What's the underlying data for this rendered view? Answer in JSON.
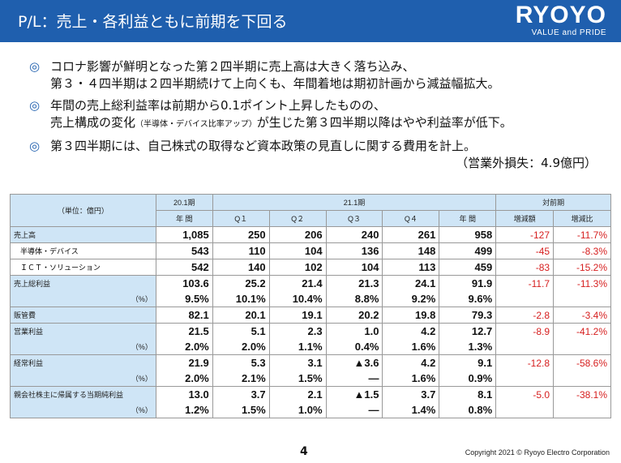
{
  "header": {
    "title": "P/L：売上・各利益ともに前期を下回る",
    "brand": "RYOYO",
    "tagline": "VALUE and PRIDE"
  },
  "bullets": [
    {
      "mark": "◎",
      "line1": "コロナ影響が鮮明となった第２四半期に売上高は大きく落ち込み、",
      "line2": "第３・４四半期は２四半期続けて上向くも、年間着地は期初計画から減益幅拡大。"
    },
    {
      "mark": "◎",
      "line1": "年間の売上総利益率は前期から0.1ポイント上昇したものの、",
      "line2a": "売上構成の変化",
      "line2_small": "（半導体・デバイス比率アップ）",
      "line2b": "が生じた第３四半期以降はやや利益率が低下。"
    },
    {
      "mark": "◎",
      "line1": "第３四半期には、自己株式の取得など資本政策の見直しに関する費用を計上。",
      "note": "（営業外損失：4.9億円）"
    }
  ],
  "table": {
    "unit": "（単位：億円）",
    "fy20": "20.1期",
    "fy21": "21.1期",
    "vs_prev": "対前期",
    "col_year": "年 間",
    "q1": "Q１",
    "q2": "Q２",
    "q3": "Q３",
    "q4": "Q４",
    "col_year2": "年 間",
    "diff": "増減額",
    "ratio": "増減比",
    "rows": {
      "sales": {
        "label": "売上高",
        "v": [
          "1,085",
          "250",
          "206",
          "240",
          "261",
          "958"
        ],
        "d": "-127",
        "r": "-11.7%"
      },
      "semi": {
        "label": "半導体・デバイス",
        "v": [
          "543",
          "110",
          "104",
          "136",
          "148",
          "499"
        ],
        "d": "-45",
        "r": "-8.3%"
      },
      "ict": {
        "label": "ＩＣＴ・ソリューション",
        "v": [
          "542",
          "140",
          "102",
          "104",
          "113",
          "459"
        ],
        "d": "-83",
        "r": "-15.2%"
      },
      "gross": {
        "label": "売上総利益",
        "pct": "（%）",
        "v": [
          "103.6",
          "25.2",
          "21.4",
          "21.3",
          "24.1",
          "91.9"
        ],
        "p": [
          "9.5%",
          "10.1%",
          "10.4%",
          "8.8%",
          "9.2%",
          "9.6%"
        ],
        "d": "-11.7",
        "r": "-11.3%"
      },
      "sga": {
        "label": "販管費",
        "v": [
          "82.1",
          "20.1",
          "19.1",
          "20.2",
          "19.8",
          "79.3"
        ],
        "d": "-2.8",
        "r": "-3.4%"
      },
      "op": {
        "label": "営業利益",
        "pct": "（%）",
        "v": [
          "21.5",
          "5.1",
          "2.3",
          "1.0",
          "4.2",
          "12.7"
        ],
        "p": [
          "2.0%",
          "2.0%",
          "1.1%",
          "0.4%",
          "1.6%",
          "1.3%"
        ],
        "d": "-8.9",
        "r": "-41.2%"
      },
      "ord": {
        "label": "経常利益",
        "pct": "（%）",
        "v": [
          "21.9",
          "5.3",
          "3.1",
          "▲3.6",
          "4.2",
          "9.1"
        ],
        "p": [
          "2.0%",
          "2.1%",
          "1.5%",
          "―",
          "1.6%",
          "0.9%"
        ],
        "d": "-12.8",
        "r": "-58.6%"
      },
      "net": {
        "label": "親会社株主に帰属する当期純利益",
        "pct": "（%）",
        "v": [
          "13.0",
          "3.7",
          "2.1",
          "▲1.5",
          "3.7",
          "8.1"
        ],
        "p": [
          "1.2%",
          "1.5%",
          "1.0%",
          "―",
          "1.4%",
          "0.8%"
        ],
        "d": "-5.0",
        "r": "-38.1%"
      }
    }
  },
  "footer": {
    "page": "4",
    "copyright": "Copyright 2021 © Ryoyo Electro Corporation"
  },
  "colors": {
    "header": "#1f5fae",
    "label_bg": "#cfe5f6",
    "negative": "#d61e1e"
  }
}
